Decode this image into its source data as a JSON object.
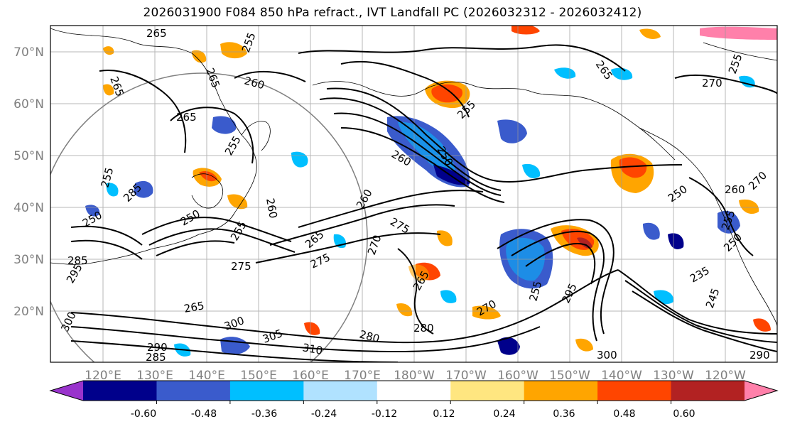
{
  "title": "2026031900 F084 850 hPa refract., IVT Landfall PC (2026032312 - 2026032412)",
  "latitude_labels": [
    "70°N",
    "60°N",
    "50°N",
    "40°N",
    "30°N",
    "20°N"
  ],
  "longitude_labels": [
    "120°E",
    "130°E",
    "140°E",
    "150°E",
    "160°E",
    "170°E",
    "180°W",
    "170°W",
    "160°W",
    "150°W",
    "140°W",
    "130°W",
    "120°W"
  ],
  "colorbar": {
    "colors": [
      "#9933cc",
      "#00008b",
      "#3a5bcc",
      "#00bfff",
      "#b0e2ff",
      "#ffffff",
      "#ffe680",
      "#ffa500",
      "#ff4500",
      "#b22222",
      "#ff80aa"
    ],
    "tick_labels": [
      "-0.60",
      "-0.48",
      "-0.36",
      "-0.24",
      "-0.12",
      "0.12",
      "0.24",
      "0.36",
      "0.48",
      "0.60"
    ]
  },
  "contour_labels": [
    "265",
    "265",
    "260",
    "265",
    "255",
    "260",
    "260",
    "255",
    "250",
    "265",
    "255",
    "270",
    "275",
    "275",
    "260",
    "270",
    "265",
    "250",
    "255",
    "285",
    "250",
    "280",
    "285",
    "300",
    "305",
    "310",
    "290",
    "285",
    "280",
    "300",
    "295",
    "255",
    "270",
    "255",
    "250",
    "235",
    "245",
    "250",
    "290",
    "300",
    "275",
    "265",
    "265",
    "255",
    "295",
    "265",
    "270",
    "260",
    "255"
  ]
}
